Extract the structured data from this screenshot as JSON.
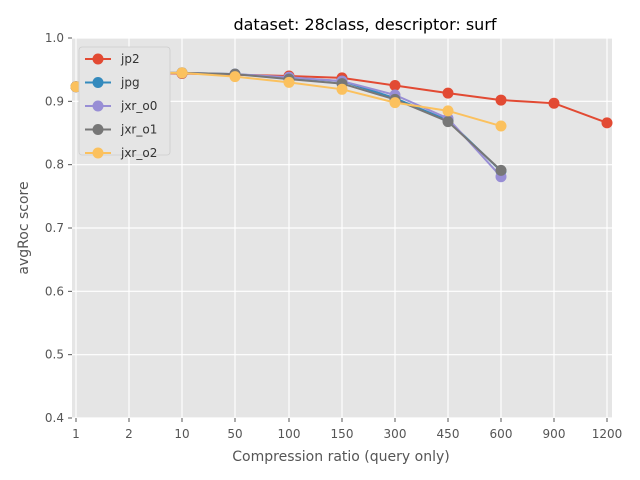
{
  "chart_data": {
    "type": "line",
    "title": "dataset: 28class, descriptor: surf",
    "xlabel": "Compression ratio (query only)",
    "ylabel": "avgRoc score",
    "categories": [
      "1",
      "2",
      "10",
      "50",
      "100",
      "150",
      "300",
      "450",
      "600",
      "900",
      "1200"
    ],
    "ylim": [
      0.4,
      1.0
    ],
    "yticks": [
      "0.4",
      "0.5",
      "0.6",
      "0.7",
      "0.8",
      "0.9",
      "1.0"
    ],
    "grid": true,
    "legend_position": "upper-left",
    "background": "#e5e5e5",
    "series": [
      {
        "name": "jp2",
        "color": "#e24a33",
        "values": [
          0.923,
          0.945,
          0.944,
          0.942,
          0.94,
          0.937,
          0.925,
          0.913,
          0.902,
          0.897,
          0.866
        ]
      },
      {
        "name": "jpg",
        "color": "#348abd",
        "values": [
          0.923,
          0.945,
          0.945,
          0.943,
          0.937,
          0.932,
          0.905,
          0.87,
          0.79,
          null,
          null
        ]
      },
      {
        "name": "jxr_o0",
        "color": "#988ed5",
        "values": [
          0.923,
          0.945,
          0.945,
          0.943,
          0.938,
          0.932,
          0.91,
          0.873,
          0.781,
          null,
          null
        ]
      },
      {
        "name": "jxr_o1",
        "color": "#777777",
        "values": [
          0.923,
          0.945,
          0.945,
          0.943,
          0.935,
          0.928,
          0.903,
          0.868,
          0.791,
          null,
          null
        ]
      },
      {
        "name": "jxr_o2",
        "color": "#fbc15e",
        "values": [
          0.923,
          0.945,
          0.945,
          0.939,
          0.93,
          0.919,
          0.898,
          0.885,
          0.861,
          null,
          null
        ]
      }
    ]
  }
}
